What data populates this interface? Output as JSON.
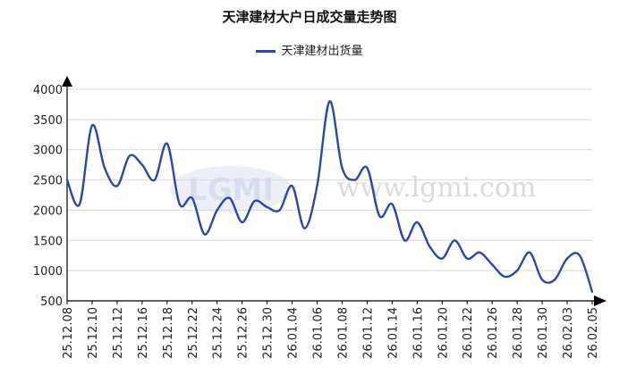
{
  "chart_data": {
    "type": "line",
    "title": "天津建材大户日成交量走势图",
    "xlabel": "",
    "ylabel": "",
    "ylim": [
      500,
      4000
    ],
    "yticks": [
      500,
      1000,
      1500,
      2000,
      2500,
      3000,
      3500,
      4000
    ],
    "grid": true,
    "legend_position": "top-center",
    "x_tick_labels": [
      "25.12.08",
      "25.12.10",
      "25.12.12",
      "25.12.16",
      "25.12.18",
      "25.12.22",
      "25.12.24",
      "25.12.26",
      "25.12.30",
      "26.01.04",
      "26.01.06",
      "26.01.08",
      "26.01.12",
      "26.01.14",
      "26.01.16",
      "26.01.20",
      "26.01.22",
      "26.01.26",
      "26.01.28",
      "26.01.30",
      "26.02.03",
      "26.02.05"
    ],
    "categories": [
      "25.12.08",
      "25.12.09",
      "25.12.10",
      "25.12.11",
      "25.12.12",
      "25.12.15",
      "25.12.16",
      "25.12.17",
      "25.12.18",
      "25.12.19",
      "25.12.22",
      "25.12.23",
      "25.12.24",
      "25.12.25",
      "25.12.26",
      "25.12.29",
      "25.12.30",
      "25.12.31",
      "26.01.04",
      "26.01.05",
      "26.01.06",
      "26.01.07",
      "26.01.08",
      "26.01.09",
      "26.01.12",
      "26.01.13",
      "26.01.14",
      "26.01.15",
      "26.01.16",
      "26.01.19",
      "26.01.20",
      "26.01.21",
      "26.01.22",
      "26.01.23",
      "26.01.26",
      "26.01.27",
      "26.01.28",
      "26.01.29",
      "26.01.30",
      "26.02.02",
      "26.02.03",
      "26.02.04",
      "26.02.05"
    ],
    "series": [
      {
        "name": "天津建材出货量",
        "color": "#2b4aa6",
        "values": [
          2500,
          2100,
          3400,
          2700,
          2400,
          2900,
          2750,
          2500,
          3100,
          2100,
          2200,
          1600,
          2000,
          2200,
          1800,
          2150,
          2050,
          2000,
          2400,
          1700,
          2400,
          3800,
          2700,
          2500,
          2700,
          1900,
          2100,
          1500,
          1800,
          1400,
          1200,
          1500,
          1200,
          1300,
          1100,
          900,
          1000,
          1300,
          850,
          850,
          1200,
          1250,
          650
        ]
      }
    ]
  },
  "watermark": {
    "logo_text": "LGMI",
    "site_text": "www.lgmi.com"
  }
}
